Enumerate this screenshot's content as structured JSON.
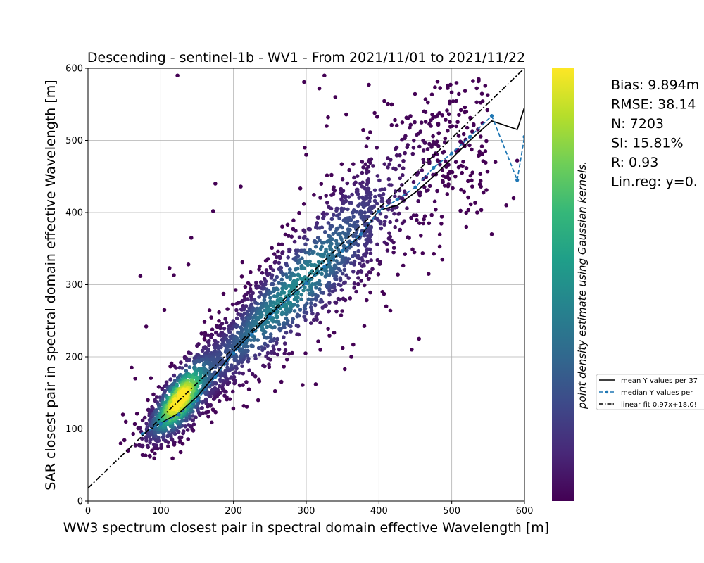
{
  "chart_data": {
    "type": "scatter",
    "title": "Descending - sentinel-1b - WV1 - From 2021/11/01 to 2021/11/22",
    "xlabel": "WW3 spectrum closest pair in spectral domain effective Wavelength [m]",
    "ylabel": "SAR closest pair in spectral domain effective Wavelength [m]",
    "xlim": [
      0,
      600
    ],
    "ylim": [
      0,
      600
    ],
    "xticks": [
      0,
      100,
      200,
      300,
      400,
      500,
      600
    ],
    "yticks": [
      0,
      100,
      200,
      300,
      400,
      500,
      600
    ],
    "grid": true,
    "colorbar_label": "point density estimate using Gaussian kernels.",
    "colormap": [
      "#440154",
      "#482878",
      "#3e4989",
      "#31688e",
      "#26828e",
      "#1f9e89",
      "#35b779",
      "#6ece58",
      "#b5de2b",
      "#fde725"
    ],
    "stats": [
      "Bias: 9.894m",
      "RMSE: 38.14",
      "N: 7203",
      "SI: 15.81%",
      "R: 0.93",
      "Lin.reg: y=0."
    ],
    "legend": {
      "placement": "right, outside plot",
      "entries": [
        "mean Y values per 37",
        "median Y values per",
        "linear fit 0.97x+18.0!"
      ]
    },
    "series": [
      {
        "kind": "mean",
        "color": "#000000",
        "x": [
          75,
          100,
          125,
          150,
          175,
          200,
          225,
          250,
          275,
          300,
          325,
          350,
          375,
          400,
          425,
          450,
          475,
          500,
          525,
          555,
          590,
          600
        ],
        "y": [
          93,
          108,
          122,
          145,
          175,
          207,
          233,
          258,
          281,
          303,
          325,
          347,
          368,
          403,
          410,
          428,
          450,
          475,
          500,
          527,
          515,
          546
        ]
      },
      {
        "kind": "median",
        "color": "#1f77b4",
        "x": [
          75,
          100,
          125,
          150,
          175,
          200,
          225,
          250,
          275,
          300,
          325,
          350,
          375,
          400,
          425,
          450,
          475,
          500,
          525,
          555,
          590,
          600
        ],
        "y": [
          93,
          107,
          120,
          140,
          172,
          205,
          231,
          256,
          280,
          302,
          325,
          347,
          370,
          402,
          418,
          435,
          462,
          482,
          505,
          534,
          445,
          505
        ]
      },
      {
        "kind": "linear-fit",
        "color": "#000000",
        "slope": 0.97,
        "intercept": 18.09,
        "x": [
          0,
          600
        ],
        "y": [
          18.09,
          600.09
        ]
      }
    ],
    "outliers": [
      [
        123,
        590
      ],
      [
        297,
        581
      ],
      [
        325,
        590
      ],
      [
        386,
        577
      ],
      [
        318,
        572
      ],
      [
        340,
        560
      ],
      [
        355,
        536
      ],
      [
        330,
        532
      ],
      [
        328,
        520
      ],
      [
        394,
        538
      ],
      [
        432,
        525
      ],
      [
        445,
        210
      ],
      [
        455,
        225
      ],
      [
        575,
        410
      ],
      [
        590,
        472
      ],
      [
        585,
        420
      ],
      [
        555,
        370
      ],
      [
        535,
        400
      ],
      [
        80,
        242
      ],
      [
        105,
        265
      ],
      [
        72,
        312
      ],
      [
        112,
        323
      ],
      [
        118,
        313
      ],
      [
        138,
        328
      ],
      [
        142,
        365
      ],
      [
        172,
        402
      ],
      [
        175,
        440
      ],
      [
        210,
        436
      ],
      [
        300,
        480
      ],
      [
        298,
        490
      ],
      [
        362,
        200
      ],
      [
        353,
        183
      ],
      [
        313,
        162
      ],
      [
        60,
        185
      ],
      [
        65,
        170
      ],
      [
        48,
        120
      ],
      [
        52,
        110
      ],
      [
        45,
        80
      ],
      [
        55,
        70
      ],
      [
        88,
        70
      ],
      [
        160,
        225
      ],
      [
        180,
        250
      ],
      [
        410,
        270
      ],
      [
        520,
        380
      ],
      [
        560,
        470
      ],
      [
        505,
        450
      ]
    ]
  }
}
